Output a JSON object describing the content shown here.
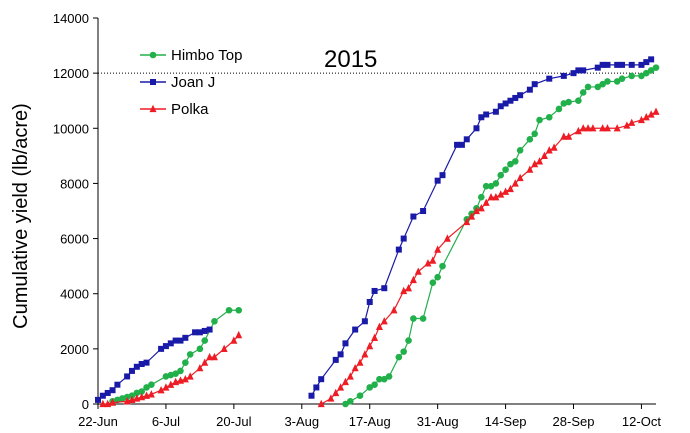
{
  "chart_data": {
    "type": "line",
    "annotation": "2015",
    "ylabel": "Cumulative yield (lb/acre)",
    "xlabel": "",
    "xlim": [
      "2015-06-22",
      "2015-10-15"
    ],
    "ylim": [
      0,
      14000
    ],
    "x_ticks": [
      {
        "date": "2015-06-22",
        "label": "22-Jun"
      },
      {
        "date": "2015-07-06",
        "label": "6-Jul"
      },
      {
        "date": "2015-07-20",
        "label": "20-Jul"
      },
      {
        "date": "2015-08-03",
        "label": "3-Aug"
      },
      {
        "date": "2015-08-17",
        "label": "17-Aug"
      },
      {
        "date": "2015-08-31",
        "label": "31-Aug"
      },
      {
        "date": "2015-09-14",
        "label": "14-Sep"
      },
      {
        "date": "2015-09-28",
        "label": "28-Sep"
      },
      {
        "date": "2015-10-12",
        "label": "12-Oct"
      }
    ],
    "y_ticks": [
      0,
      2000,
      4000,
      6000,
      8000,
      10000,
      12000,
      14000
    ],
    "grid": "horizontal major lines at 12000",
    "legend_position": "top-left",
    "series": [
      {
        "name": "Himbo Top",
        "color": "#22b04b",
        "marker": "circle",
        "segments": [
          {
            "x": [
              "2015-06-25",
              "2015-06-26",
              "2015-06-27",
              "2015-06-28",
              "2015-06-29",
              "2015-06-30",
              "2015-07-01",
              "2015-07-02",
              "2015-07-03",
              "2015-07-06",
              "2015-07-07",
              "2015-07-08",
              "2015-07-09",
              "2015-07-10",
              "2015-07-11",
              "2015-07-13",
              "2015-07-14",
              "2015-07-16",
              "2015-07-19",
              "2015-07-21"
            ],
            "y": [
              100,
              150,
              200,
              250,
              300,
              400,
              450,
              600,
              700,
              1000,
              1050,
              1100,
              1200,
              1500,
              1800,
              2000,
              2300,
              3000,
              3400,
              3400
            ]
          },
          {
            "x": [
              "2015-08-12",
              "2015-08-13",
              "2015-08-15",
              "2015-08-17",
              "2015-08-18",
              "2015-08-19",
              "2015-08-20",
              "2015-08-21",
              "2015-08-23",
              "2015-08-24",
              "2015-08-25",
              "2015-08-26",
              "2015-08-28",
              "2015-08-30",
              "2015-08-31",
              "2015-09-01",
              "2015-09-06",
              "2015-09-07",
              "2015-09-08",
              "2015-09-09",
              "2015-09-10",
              "2015-09-11",
              "2015-09-12",
              "2015-09-13",
              "2015-09-14",
              "2015-09-15",
              "2015-09-16",
              "2015-09-17",
              "2015-09-19",
              "2015-09-20",
              "2015-09-21",
              "2015-09-23",
              "2015-09-25",
              "2015-09-26",
              "2015-09-27",
              "2015-09-29",
              "2015-09-30",
              "2015-10-01",
              "2015-10-03",
              "2015-10-04",
              "2015-10-05",
              "2015-10-07",
              "2015-10-08",
              "2015-10-10",
              "2015-10-12",
              "2015-10-13",
              "2015-10-14",
              "2015-10-15"
            ],
            "y": [
              0,
              100,
              300,
              600,
              700,
              900,
              900,
              1000,
              1700,
              1900,
              2300,
              3100,
              3100,
              4400,
              4600,
              5000,
              6700,
              6900,
              7100,
              7500,
              7900,
              7900,
              8000,
              8300,
              8500,
              8700,
              8800,
              9200,
              9600,
              9800,
              10300,
              10400,
              10700,
              10900,
              10950,
              11000,
              11300,
              11500,
              11500,
              11600,
              11700,
              11700,
              11800,
              11900,
              11900,
              12000,
              12100,
              12200
            ]
          }
        ]
      },
      {
        "name": "Joan J",
        "color": "#1a1aa8",
        "marker": "square",
        "segments": [
          {
            "x": [
              "2015-06-22",
              "2015-06-23",
              "2015-06-24",
              "2015-06-25",
              "2015-06-26",
              "2015-06-28",
              "2015-06-29",
              "2015-06-30",
              "2015-07-01",
              "2015-07-02",
              "2015-07-05",
              "2015-07-06",
              "2015-07-07",
              "2015-07-08",
              "2015-07-09",
              "2015-07-10",
              "2015-07-12",
              "2015-07-13",
              "2015-07-14",
              "2015-07-15"
            ],
            "y": [
              150,
              300,
              400,
              500,
              700,
              1000,
              1200,
              1350,
              1450,
              1500,
              2000,
              2100,
              2200,
              2300,
              2300,
              2400,
              2600,
              2600,
              2650,
              2700
            ]
          },
          {
            "x": [
              "2015-08-05",
              "2015-08-06",
              "2015-08-07",
              "2015-08-10",
              "2015-08-11",
              "2015-08-12",
              "2015-08-14",
              "2015-08-16",
              "2015-08-17",
              "2015-08-18",
              "2015-08-20",
              "2015-08-23",
              "2015-08-24",
              "2015-08-26",
              "2015-08-28",
              "2015-08-31",
              "2015-09-01",
              "2015-09-04",
              "2015-09-05",
              "2015-09-06",
              "2015-09-08",
              "2015-09-09",
              "2015-09-10",
              "2015-09-12",
              "2015-09-13",
              "2015-09-14",
              "2015-09-15",
              "2015-09-16",
              "2015-09-17",
              "2015-09-19",
              "2015-09-20",
              "2015-09-23",
              "2015-09-26",
              "2015-09-28",
              "2015-09-29",
              "2015-09-30",
              "2015-10-03",
              "2015-10-04",
              "2015-10-05",
              "2015-10-07",
              "2015-10-08",
              "2015-10-10",
              "2015-10-12",
              "2015-10-13",
              "2015-10-14"
            ],
            "y": [
              300,
              600,
              900,
              1600,
              1800,
              2200,
              2700,
              3000,
              3700,
              4100,
              4200,
              5600,
              6000,
              6800,
              7000,
              8100,
              8300,
              9400,
              9400,
              9600,
              10000,
              10400,
              10500,
              10600,
              10800,
              10900,
              11000,
              11100,
              11200,
              11400,
              11600,
              11800,
              11900,
              12000,
              12100,
              12100,
              12200,
              12300,
              12300,
              12300,
              12300,
              12300,
              12300,
              12400,
              12500
            ]
          }
        ]
      },
      {
        "name": "Polka",
        "color": "#ee1c24",
        "marker": "triangle",
        "segments": [
          {
            "x": [
              "2015-06-23",
              "2015-06-24",
              "2015-06-25",
              "2015-06-28",
              "2015-06-29",
              "2015-06-30",
              "2015-07-01",
              "2015-07-02",
              "2015-07-03",
              "2015-07-05",
              "2015-07-06",
              "2015-07-07",
              "2015-07-08",
              "2015-07-09",
              "2015-07-10",
              "2015-07-11",
              "2015-07-13",
              "2015-07-14",
              "2015-07-15",
              "2015-07-16",
              "2015-07-18",
              "2015-07-20",
              "2015-07-21"
            ],
            "y": [
              0,
              0,
              50,
              100,
              150,
              200,
              250,
              300,
              350,
              500,
              600,
              700,
              800,
              850,
              900,
              1000,
              1300,
              1500,
              1700,
              1700,
              2000,
              2300,
              2500
            ]
          },
          {
            "x": [
              "2015-08-07",
              "2015-08-09",
              "2015-08-10",
              "2015-08-11",
              "2015-08-12",
              "2015-08-13",
              "2015-08-14",
              "2015-08-15",
              "2015-08-16",
              "2015-08-17",
              "2015-08-18",
              "2015-08-19",
              "2015-08-20",
              "2015-08-22",
              "2015-08-24",
              "2015-08-25",
              "2015-08-26",
              "2015-08-27",
              "2015-08-29",
              "2015-08-30",
              "2015-08-31",
              "2015-09-02",
              "2015-09-06",
              "2015-09-07",
              "2015-09-08",
              "2015-09-09",
              "2015-09-10",
              "2015-09-11",
              "2015-09-12",
              "2015-09-13",
              "2015-09-14",
              "2015-09-15",
              "2015-09-16",
              "2015-09-17",
              "2015-09-19",
              "2015-09-20",
              "2015-09-21",
              "2015-09-22",
              "2015-09-23",
              "2015-09-24",
              "2015-09-26",
              "2015-09-27",
              "2015-09-29",
              "2015-09-30",
              "2015-10-01",
              "2015-10-02",
              "2015-10-04",
              "2015-10-05",
              "2015-10-07",
              "2015-10-09",
              "2015-10-10",
              "2015-10-12",
              "2015-10-13",
              "2015-10-14",
              "2015-10-15"
            ],
            "y": [
              0,
              200,
              400,
              600,
              800,
              1000,
              1300,
              1500,
              1800,
              2100,
              2400,
              2800,
              3000,
              3400,
              4100,
              4200,
              4500,
              4800,
              5100,
              5200,
              5600,
              6000,
              6600,
              6800,
              7000,
              7100,
              7300,
              7500,
              7500,
              7600,
              7700,
              7800,
              8000,
              8200,
              8500,
              8700,
              8800,
              9000,
              9200,
              9300,
              9700,
              9700,
              9900,
              10000,
              10000,
              10000,
              10000,
              10000,
              10000,
              10100,
              10200,
              10300,
              10400,
              10500,
              10600
            ]
          }
        ]
      }
    ]
  }
}
